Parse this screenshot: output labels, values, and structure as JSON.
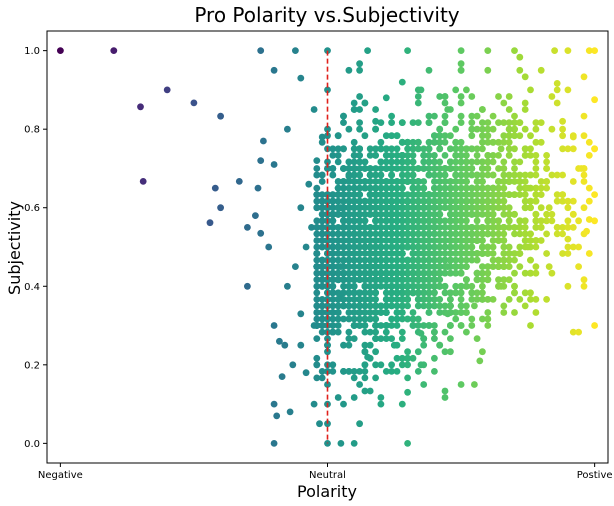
{
  "chart_data": {
    "type": "scatter",
    "title": "Pro Polarity vs.Subjectivity",
    "xlabel": "Polarity",
    "ylabel": "Subjectivity",
    "xlim": [
      -1.05,
      1.05
    ],
    "ylim": [
      -0.05,
      1.05
    ],
    "xticks": [
      {
        "value": -1,
        "label": "Negative"
      },
      {
        "value": 0,
        "label": "Neutral"
      },
      {
        "value": 1,
        "label": "Postive"
      }
    ],
    "yticks": [
      {
        "value": 0.0,
        "label": "0.0"
      },
      {
        "value": 0.2,
        "label": "0.2"
      },
      {
        "value": 0.4,
        "label": "0.4"
      },
      {
        "value": 0.6,
        "label": "0.6"
      },
      {
        "value": 0.8,
        "label": "0.8"
      },
      {
        "value": 1.0,
        "label": "1.0"
      }
    ],
    "colormap": "viridis",
    "color_by": "x",
    "reference_line": {
      "x": 0,
      "color": "#e0201b",
      "style": "dashed"
    },
    "points": [
      [
        -1.0,
        1.0
      ],
      [
        -0.8,
        1.0
      ],
      [
        -0.6,
        0.9
      ],
      [
        -0.7,
        0.857
      ],
      [
        -0.5,
        0.867
      ],
      [
        -0.4,
        0.833
      ],
      [
        -0.69,
        0.667
      ],
      [
        -0.42,
        0.65
      ],
      [
        -0.4,
        0.6
      ],
      [
        -0.44,
        0.562
      ],
      [
        -0.33,
        0.667
      ],
      [
        -0.3,
        0.55
      ],
      [
        -0.27,
        0.58
      ],
      [
        -0.26,
        0.65
      ],
      [
        -0.25,
        0.535
      ],
      [
        -0.3,
        0.4
      ],
      [
        -0.25,
        1.0
      ],
      [
        -0.2,
        0.95
      ],
      [
        -0.2,
        0.71
      ],
      [
        -0.24,
        0.77
      ],
      [
        -0.15,
        0.8
      ],
      [
        -0.25,
        0.72
      ],
      [
        -0.22,
        0.5
      ],
      [
        -0.12,
        1.0
      ],
      [
        -0.1,
        0.93
      ],
      [
        -0.05,
        0.85
      ],
      [
        -0.2,
        0.0
      ],
      [
        -0.2,
        0.1
      ],
      [
        -0.19,
        0.07
      ],
      [
        -0.17,
        0.17
      ],
      [
        -0.14,
        0.08
      ],
      [
        -0.2,
        0.3
      ],
      [
        -0.18,
        0.26
      ],
      [
        -0.16,
        0.25
      ],
      [
        -0.13,
        0.2
      ],
      [
        -0.1,
        0.25
      ],
      [
        -0.08,
        0.18
      ],
      [
        -0.05,
        0.1
      ],
      [
        -0.03,
        0.05
      ],
      [
        -0.05,
        0.3
      ],
      [
        -0.1,
        0.33
      ],
      [
        -0.15,
        0.4
      ],
      [
        -0.12,
        0.45
      ],
      [
        -0.08,
        0.5
      ],
      [
        -0.06,
        0.55
      ],
      [
        -0.1,
        0.6
      ],
      [
        -0.07,
        0.66
      ],
      [
        -0.04,
        0.72
      ],
      [
        -0.02,
        0.78
      ],
      [
        -0.02,
        0.6
      ],
      [
        -0.02,
        0.45
      ],
      [
        -0.02,
        0.35
      ],
      [
        0.0,
        1.0
      ],
      [
        0.0,
        0.9
      ],
      [
        0.0,
        0.8
      ],
      [
        0.0,
        0.75
      ],
      [
        0.0,
        0.7
      ],
      [
        0.0,
        0.6
      ],
      [
        0.0,
        0.5
      ],
      [
        0.0,
        0.4
      ],
      [
        0.0,
        0.3
      ],
      [
        0.0,
        0.25
      ],
      [
        0.0,
        0.2
      ],
      [
        0.0,
        0.15
      ],
      [
        0.0,
        0.1
      ],
      [
        0.0,
        0.05
      ],
      [
        0.0,
        0.0
      ],
      [
        0.05,
        0.0
      ],
      [
        0.1,
        0.0
      ],
      [
        0.12,
        0.15
      ],
      [
        0.08,
        0.25
      ],
      [
        0.05,
        0.6
      ],
      [
        0.08,
        0.95
      ],
      [
        0.15,
        1.0
      ],
      [
        0.3,
        1.0
      ],
      [
        0.3,
        0.0
      ],
      [
        0.3,
        0.13
      ],
      [
        0.35,
        0.9
      ],
      [
        0.35,
        0.2
      ],
      [
        0.45,
        0.85
      ],
      [
        0.45,
        0.33
      ],
      [
        0.5,
        1.0
      ],
      [
        0.5,
        0.15
      ],
      [
        0.55,
        0.15
      ],
      [
        0.57,
        0.21
      ],
      [
        0.6,
        1.0
      ],
      [
        0.65,
        0.4
      ],
      [
        0.7,
        1.0
      ],
      [
        0.75,
        0.5
      ],
      [
        0.8,
        0.6
      ],
      [
        0.83,
        0.45
      ],
      [
        0.83,
        0.6
      ],
      [
        0.9,
        0.52
      ],
      [
        0.9,
        0.4
      ],
      [
        0.9,
        0.9
      ],
      [
        0.95,
        0.7
      ],
      [
        0.97,
        0.54
      ],
      [
        0.98,
        0.57
      ],
      [
        1.0,
        1.0
      ],
      [
        0.98,
        1.0
      ],
      [
        1.0,
        0.3
      ],
      [
        1.0,
        0.75
      ],
      [
        1.0,
        0.875
      ],
      [
        0.9,
        1.0
      ],
      [
        0.85,
        1.0
      ],
      [
        0.8,
        0.95
      ],
      [
        0.78,
        0.8
      ],
      [
        0.75,
        0.65
      ],
      [
        0.72,
        0.95
      ],
      [
        0.65,
        0.75
      ],
      [
        0.62,
        0.55
      ],
      [
        0.55,
        0.35
      ],
      [
        0.45,
        0.45
      ],
      [
        0.4,
        0.3
      ],
      [
        0.35,
        0.28
      ],
      [
        0.25,
        0.25
      ],
      [
        0.2,
        0.2
      ],
      [
        0.15,
        0.22
      ],
      [
        0.1,
        0.3
      ],
      [
        0.05,
        0.38
      ],
      [
        0.05,
        0.45
      ],
      [
        0.08,
        0.68
      ],
      [
        0.12,
        0.75
      ],
      [
        0.18,
        0.82
      ],
      [
        0.22,
        0.88
      ],
      [
        0.28,
        0.92
      ],
      [
        0.38,
        0.95
      ],
      [
        0.42,
        0.25
      ],
      [
        0.6,
        0.3
      ],
      [
        0.68,
        0.85
      ],
      [
        0.88,
        0.82
      ],
      [
        0.92,
        0.78
      ]
    ],
    "cloud": {
      "count": 3200,
      "x_center": 0.25,
      "x_spread": 0.3,
      "y_center": 0.52,
      "y_spread": 0.15,
      "correlation": 0.35
    }
  }
}
